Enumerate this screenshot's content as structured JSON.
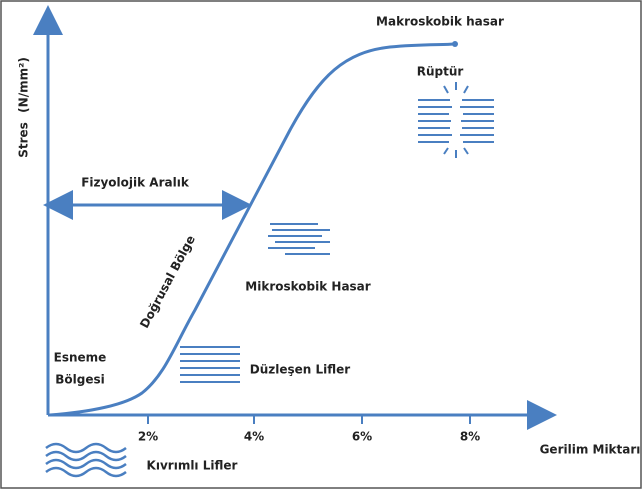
{
  "axes": {
    "y_label": "Stres",
    "y_unit": "(N/mm²)",
    "x_label": "Gerilim Miktarı",
    "x_ticks": [
      "2%",
      "4%",
      "6%",
      "8%"
    ]
  },
  "regions": {
    "physiological": "Fizyolojik Aralık",
    "linear": "Doğrusal Bölge",
    "toe_line1": "Esneme",
    "toe_line2": "Bölgesi"
  },
  "labels": {
    "macro": "Makroskobik hasar",
    "rupture": "Rüptür",
    "micro": "Mikroskobik Hasar",
    "straight": "Düzleşen Lifler",
    "crimped": "Kıvrımlı Lifler"
  }
}
